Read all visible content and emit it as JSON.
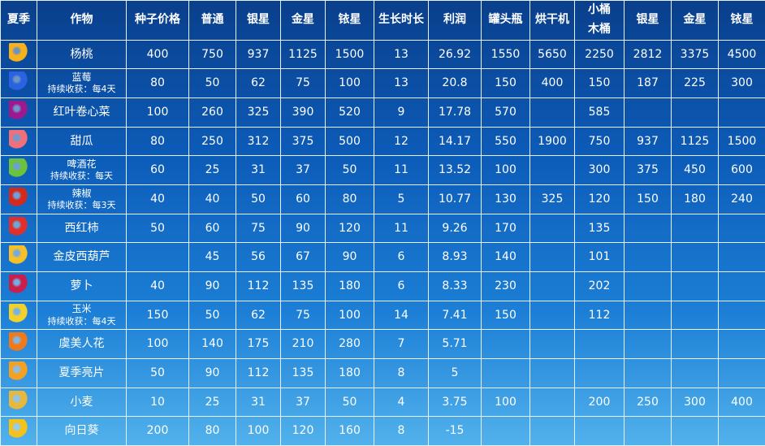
{
  "headers": [
    "夏季",
    "作物",
    "种子价格",
    "普通",
    "银星",
    "金星",
    "铱星",
    "生长时长",
    "利润",
    "罐头瓶",
    "烘干机",
    "小桶\n木桶",
    "银星",
    "金星",
    "铱星"
  ],
  "rows": [
    {
      "icon": "starfruit-icon",
      "color": "#f7b21b",
      "name": "杨桃",
      "note": "",
      "cells": [
        "400",
        "750",
        "937",
        "1125",
        "1500",
        "13",
        "26.92",
        "1550",
        "5650",
        "2250",
        "2812",
        "3375",
        "4500"
      ]
    },
    {
      "icon": "blueberry-icon",
      "color": "#2a62e0",
      "name": "蓝莓",
      "note": "持续收获：每4天",
      "cells": [
        "80",
        "50",
        "62",
        "75",
        "100",
        "13",
        "20.8",
        "150",
        "400",
        "150",
        "187",
        "225",
        "300"
      ]
    },
    {
      "icon": "red-cabbage-icon",
      "color": "#a0188e",
      "name": "红叶卷心菜",
      "note": "",
      "cells": [
        "100",
        "260",
        "325",
        "390",
        "520",
        "9",
        "17.78",
        "570",
        "",
        "585",
        "",
        "",
        ""
      ]
    },
    {
      "icon": "melon-icon",
      "color": "#f0707a",
      "name": "甜瓜",
      "note": "",
      "cells": [
        "80",
        "250",
        "312",
        "375",
        "500",
        "12",
        "14.17",
        "550",
        "1900",
        "750",
        "937",
        "1125",
        "1500"
      ]
    },
    {
      "icon": "hops-icon",
      "color": "#6cc23a",
      "name": "啤酒花",
      "note": "持续收获：每天",
      "cells": [
        "60",
        "25",
        "31",
        "37",
        "50",
        "11",
        "13.52",
        "100",
        "",
        "300",
        "375",
        "450",
        "600"
      ]
    },
    {
      "icon": "hot-pepper-icon",
      "color": "#d42a1e",
      "name": "辣椒",
      "note": "持续收获：每3天",
      "cells": [
        "40",
        "40",
        "50",
        "60",
        "80",
        "5",
        "10.77",
        "130",
        "325",
        "120",
        "150",
        "180",
        "240"
      ]
    },
    {
      "icon": "tomato-icon",
      "color": "#e0302a",
      "name": "西红柿",
      "note": "",
      "cells": [
        "50",
        "60",
        "75",
        "90",
        "120",
        "11",
        "9.26",
        "170",
        "",
        "135",
        "",
        "",
        ""
      ]
    },
    {
      "icon": "summer-squash-icon",
      "color": "#f5c02a",
      "name": "金皮西葫芦",
      "note": "",
      "cells": [
        "",
        "45",
        "56",
        "67",
        "90",
        "6",
        "8.93",
        "140",
        "",
        "101",
        "",
        "",
        ""
      ]
    },
    {
      "icon": "radish-icon",
      "color": "#c8204a",
      "name": "萝卜",
      "note": "",
      "cells": [
        "40",
        "90",
        "112",
        "135",
        "180",
        "6",
        "8.33",
        "230",
        "",
        "202",
        "",
        "",
        ""
      ]
    },
    {
      "icon": "corn-icon",
      "color": "#f2d22a",
      "name": "玉米",
      "note": "持续收获：每4天",
      "cells": [
        "150",
        "50",
        "62",
        "75",
        "100",
        "14",
        "7.41",
        "150",
        "",
        "112",
        "",
        "",
        ""
      ]
    },
    {
      "icon": "poppy-icon",
      "color": "#f07a1a",
      "name": "虞美人花",
      "note": "",
      "cells": [
        "100",
        "140",
        "175",
        "210",
        "280",
        "7",
        "5.71",
        "",
        "",
        "",
        "",
        "",
        ""
      ]
    },
    {
      "icon": "summer-spangle-icon",
      "color": "#f5a020",
      "name": "夏季亮片",
      "note": "",
      "cells": [
        "50",
        "90",
        "112",
        "135",
        "180",
        "8",
        "5",
        "",
        "",
        "",
        "",
        "",
        ""
      ]
    },
    {
      "icon": "wheat-icon",
      "color": "#e8b83a",
      "name": "小麦",
      "note": "",
      "cells": [
        "10",
        "25",
        "31",
        "37",
        "50",
        "4",
        "3.75",
        "100",
        "",
        "200",
        "250",
        "300",
        "400"
      ]
    },
    {
      "icon": "sunflower-icon",
      "color": "#f5c21a",
      "name": "向日葵",
      "note": "",
      "cells": [
        "200",
        "80",
        "100",
        "120",
        "160",
        "8",
        "-15",
        "",
        "",
        "",
        "",
        "",
        ""
      ]
    }
  ]
}
